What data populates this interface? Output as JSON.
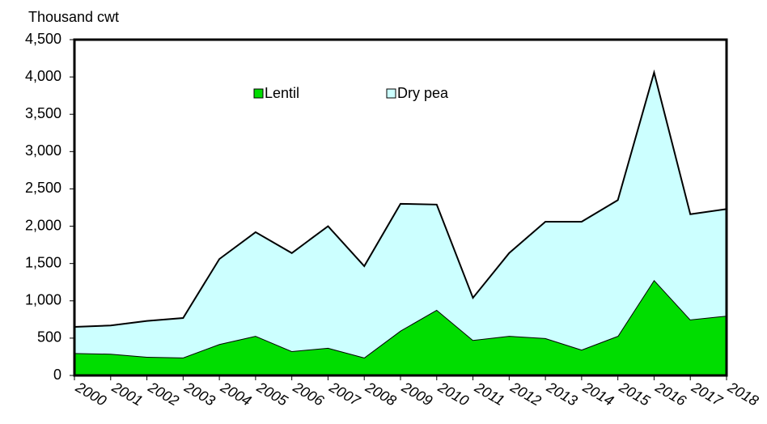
{
  "chart_data": {
    "type": "stacked_area",
    "y_axis_label": "Thousand cwt",
    "categories": [
      "2000",
      "2001",
      "2002",
      "2003",
      "2004",
      "2005",
      "2006",
      "2007",
      "2008",
      "2009",
      "2010",
      "2011",
      "2012",
      "2013",
      "2014",
      "2015",
      "2016",
      "2017",
      "2018"
    ],
    "series": [
      {
        "name": "Lentil",
        "color": "#00dd00",
        "values": [
          300,
          290,
          250,
          240,
          420,
          530,
          325,
          370,
          240,
          600,
          880,
          475,
          530,
          500,
          345,
          530,
          1280,
          750,
          800
        ]
      },
      {
        "name": "Dry pea",
        "color": "#ccffff",
        "values": [
          350,
          380,
          480,
          530,
          1140,
          1390,
          1315,
          1630,
          1225,
          1700,
          1410,
          565,
          1110,
          1560,
          1715,
          1820,
          2780,
          1410,
          1430
        ]
      }
    ],
    "ylim": [
      0,
      4500
    ],
    "yticks": [
      0,
      500,
      {
        "value": 1000,
        "label": "1,000"
      },
      {
        "value": 1500,
        "label": "1,500"
      },
      {
        "value": 2000,
        "label": "2,000"
      },
      {
        "value": 2500,
        "label": "2,500"
      },
      {
        "value": 3000,
        "label": "3,000"
      },
      {
        "value": 3500,
        "label": "3,500"
      },
      {
        "value": 4000,
        "label": "4,000"
      },
      {
        "value": 4500,
        "label": "4,500"
      }
    ],
    "legend": "top"
  }
}
